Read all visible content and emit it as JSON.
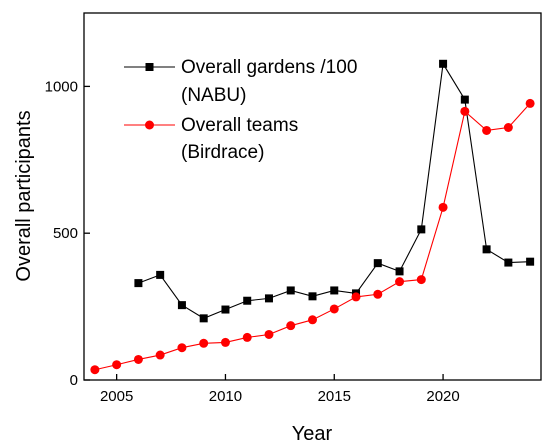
{
  "chart_data": {
    "type": "line",
    "xlabel": "Year",
    "ylabel": "Overall participants",
    "xlim": [
      2003.5,
      2024.5
    ],
    "ylim": [
      0,
      1250
    ],
    "x_ticks": [
      2005,
      2010,
      2015,
      2020
    ],
    "y_ticks": [
      0,
      500,
      1000
    ],
    "grid": false,
    "legend_position": "top-left",
    "series": [
      {
        "name_line1": "Overall gardens /100",
        "name_line2": "(NABU)",
        "color": "#000000",
        "marker": "square",
        "x": [
          2006,
          2007,
          2008,
          2009,
          2010,
          2011,
          2012,
          2013,
          2014,
          2015,
          2016,
          2017,
          2018,
          2019,
          2020,
          2021,
          2022,
          2023,
          2024
        ],
        "y": [
          330,
          358,
          255,
          210,
          240,
          270,
          278,
          305,
          285,
          305,
          295,
          398,
          370,
          513,
          1077,
          955,
          445,
          400,
          403
        ]
      },
      {
        "name_line1": "Overall teams",
        "name_line2": "(Birdrace)",
        "color": "#ff0000",
        "marker": "circle",
        "x": [
          2004,
          2005,
          2006,
          2007,
          2008,
          2009,
          2010,
          2011,
          2012,
          2013,
          2014,
          2015,
          2016,
          2017,
          2018,
          2019,
          2020,
          2021,
          2022,
          2023,
          2024
        ],
        "y": [
          35,
          52,
          70,
          85,
          110,
          125,
          128,
          145,
          155,
          185,
          205,
          242,
          283,
          292,
          335,
          342,
          588,
          915,
          850,
          860,
          942
        ]
      }
    ]
  }
}
